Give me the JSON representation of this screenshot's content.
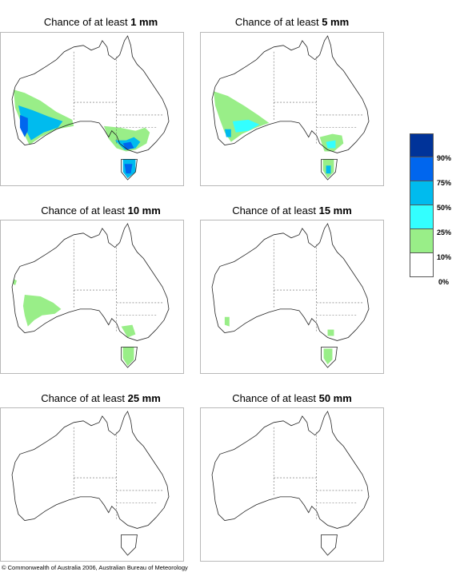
{
  "panels": [
    {
      "title_prefix": "Chance of at least ",
      "amount": "1 mm"
    },
    {
      "title_prefix": "Chance of at least ",
      "amount": "5 mm"
    },
    {
      "title_prefix": "Chance of at least ",
      "amount": "10 mm"
    },
    {
      "title_prefix": "Chance of at least ",
      "amount": "15 mm"
    },
    {
      "title_prefix": "Chance of at least ",
      "amount": "25 mm"
    },
    {
      "title_prefix": "Chance of at least ",
      "amount": "50 mm"
    }
  ],
  "legend": {
    "labels": [
      "90%",
      "75%",
      "50%",
      "25%",
      "10%",
      "0%"
    ],
    "colors": [
      "#003399",
      "#0066ee",
      "#00bbee",
      "#33ffff",
      "#99ee88",
      "#ffffff"
    ]
  },
  "copyright": "© Commonwealth of Australia 2006, Australian Bureau of Meteorology"
}
